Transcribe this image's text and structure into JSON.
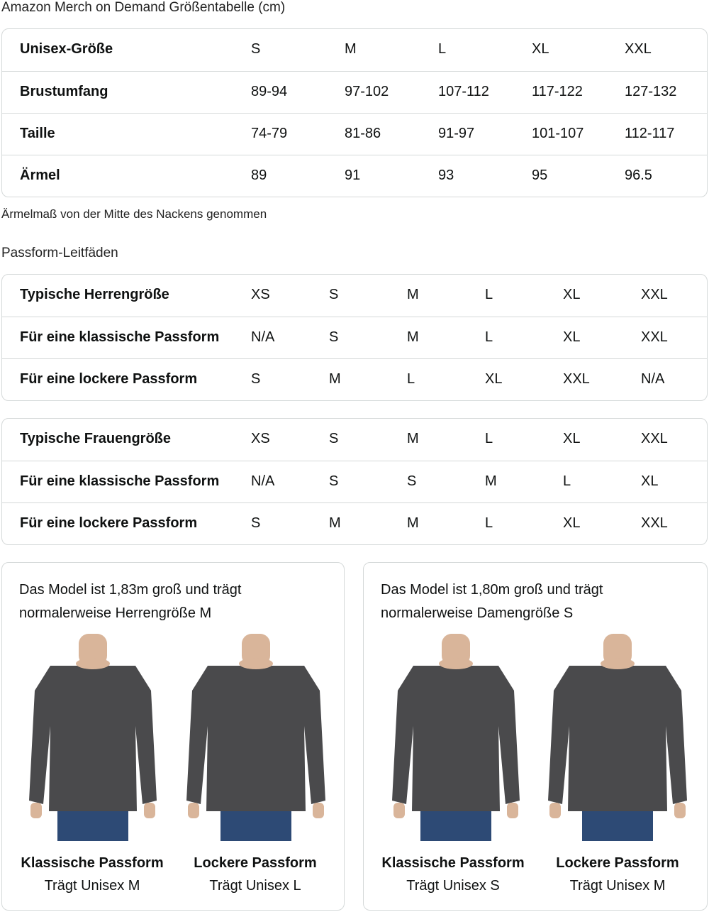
{
  "title": "Amazon Merch on Demand Größentabelle (cm)",
  "size_table": {
    "rows": [
      {
        "label": "Unisex-Größe",
        "values": [
          "S",
          "M",
          "L",
          "XL",
          "XXL"
        ]
      },
      {
        "label": "Brustumfang",
        "values": [
          "89-94",
          "97-102",
          "107-112",
          "117-122",
          "127-132"
        ]
      },
      {
        "label": "Taille",
        "values": [
          "74-79",
          "81-86",
          "91-97",
          "101-107",
          "112-117"
        ]
      },
      {
        "label": "Ärmel",
        "values": [
          "89",
          "91",
          "93",
          "95",
          "96.5"
        ]
      }
    ]
  },
  "note": "Ärmelmaß von der Mitte des Nackens genommen",
  "fit_heading": "Passform-Leitfäden",
  "men_table": {
    "rows": [
      {
        "label": "Typische Herrengröße",
        "values": [
          "XS",
          "S",
          "M",
          "L",
          "XL",
          "XXL"
        ]
      },
      {
        "label": "Für eine klassische Passform",
        "values": [
          "N/A",
          "S",
          "M",
          "L",
          "XL",
          "XXL"
        ]
      },
      {
        "label": "Für eine lockere Passform",
        "values": [
          "S",
          "M",
          "L",
          "XL",
          "XXL",
          "N/A"
        ]
      }
    ]
  },
  "women_table": {
    "rows": [
      {
        "label": "Typische Frauengröße",
        "values": [
          "XS",
          "S",
          "M",
          "L",
          "XL",
          "XXL"
        ]
      },
      {
        "label": "Für eine klassische Passform",
        "values": [
          "N/A",
          "S",
          "S",
          "M",
          "L",
          "XL"
        ]
      },
      {
        "label": "Für eine lockere Passform",
        "values": [
          "S",
          "M",
          "M",
          "L",
          "XL",
          "XXL"
        ]
      }
    ]
  },
  "cards": [
    {
      "text": "Das Model ist 1,83m groß und trägt normalerweise Herrengröße M",
      "models": [
        {
          "caption": "Klassische Passform",
          "sub": "Trägt Unisex M"
        },
        {
          "caption": "Lockere Passform",
          "sub": "Trägt Unisex L"
        }
      ]
    },
    {
      "text": "Das Model ist 1,80m groß und trägt normalerweise Damengröße S",
      "models": [
        {
          "caption": "Klassische Passform",
          "sub": "Trägt Unisex S"
        },
        {
          "caption": "Lockere Passform",
          "sub": "Trägt Unisex M"
        }
      ]
    }
  ],
  "colors": {
    "sweater": "#4a4a4c",
    "jeans": "#2d4a75",
    "skin": "#d9b59a",
    "border": "#d5d9d9"
  }
}
